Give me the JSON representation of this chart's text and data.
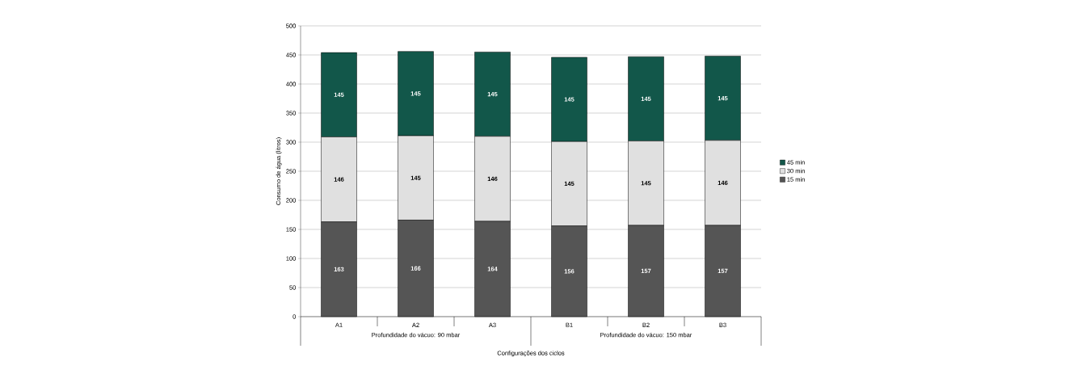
{
  "chart_data": {
    "type": "bar",
    "stacked": true,
    "xlabel": "Configurações dos ciclos",
    "ylabel": "Consumo de água (litros)",
    "categories": [
      "A1",
      "A2",
      "A3",
      "B1",
      "B2",
      "B3"
    ],
    "series": [
      {
        "name": "15 min",
        "color": "#555555",
        "values": [
          163,
          166,
          164,
          156,
          157,
          157
        ]
      },
      {
        "name": "30 min",
        "color": "#e0e0e0",
        "values": [
          146,
          145,
          146,
          145,
          145,
          146
        ]
      },
      {
        "name": "45 min",
        "color": "#12574a",
        "values": [
          145,
          145,
          145,
          145,
          145,
          145
        ]
      }
    ],
    "ylim": [
      0,
      500
    ],
    "yticks": [
      0,
      50,
      100,
      150,
      200,
      250,
      300,
      350,
      400,
      450,
      500
    ],
    "grid": "y",
    "legend": "right",
    "data_labels": true,
    "annotations": [
      "Profundidade do vácuo: 90 mbar",
      "Profundidade do vácuo: 150 mbar"
    ]
  }
}
